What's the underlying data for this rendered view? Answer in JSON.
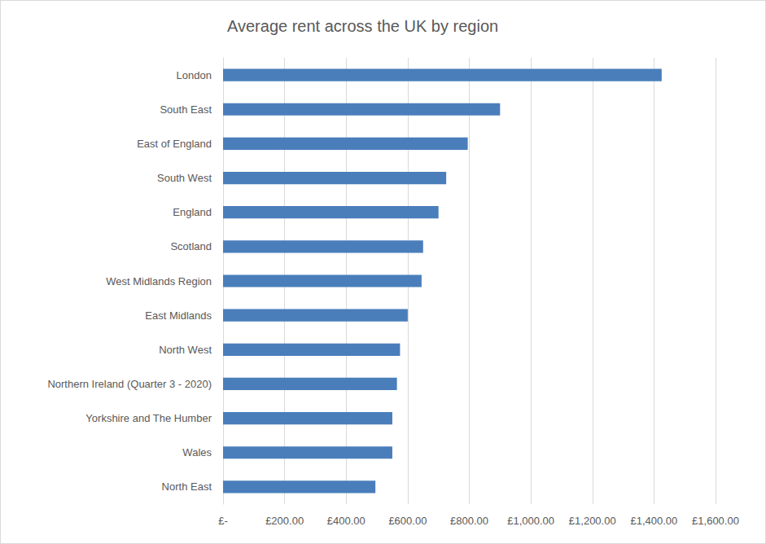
{
  "chart_data": {
    "type": "bar",
    "orientation": "horizontal",
    "title": "Average rent across the UK by region",
    "categories": [
      "London",
      "South East",
      "East of England",
      "South West",
      "England",
      "Scotland",
      "West Midlands Region",
      "East Midlands",
      "North West",
      "Northern Ireland (Quarter 3 - 2020)",
      "Yorkshire and The Humber",
      "Wales",
      "North East"
    ],
    "values": [
      1425,
      900,
      795,
      725,
      700,
      650,
      645,
      600,
      575,
      565,
      550,
      550,
      495
    ],
    "color": "#4a7ebb",
    "xlim": [
      0,
      1600
    ],
    "xticks": [
      {
        "value": 0,
        "label": "£-"
      },
      {
        "value": 200,
        "label": "£200.00"
      },
      {
        "value": 400,
        "label": "£400.00"
      },
      {
        "value": 600,
        "label": "£600.00"
      },
      {
        "value": 800,
        "label": "£800.00"
      },
      {
        "value": 1000,
        "label": "£1,000.00"
      },
      {
        "value": 1200,
        "label": "£1,200.00"
      },
      {
        "value": 1400,
        "label": "£1,400.00"
      },
      {
        "value": 1600,
        "label": "£1,600.00"
      }
    ],
    "grid": true
  }
}
